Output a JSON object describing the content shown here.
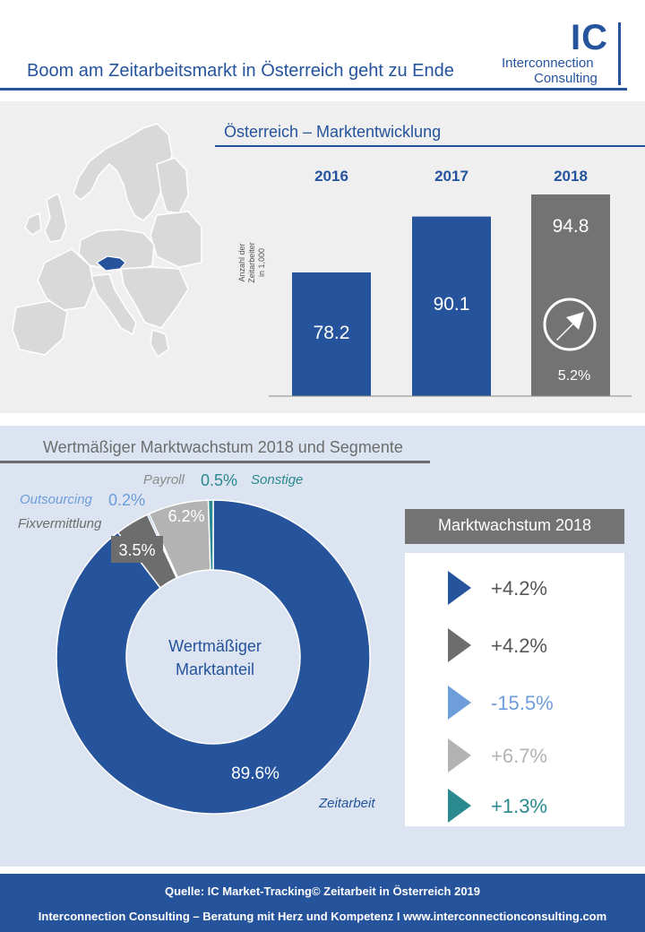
{
  "header": {
    "title": "Boom am Zeitarbeitsmarkt in Österreich geht zu Ende",
    "logo_mark": "IC",
    "logo_line1": "Interconnection",
    "logo_line2": "Consulting"
  },
  "market": {
    "title": "Österreich – Marktentwicklung",
    "ylabel_lines": [
      "Anzahl der",
      "Zeitarbeiter",
      "in 1,000"
    ],
    "growth_label": "5.2%",
    "growth_icon": "arrow-circle-up-right-icon"
  },
  "segments": {
    "title": "Wertmäßiger Marktwachstum 2018 und Segmente",
    "center_label_line1": "Wertmäßiger",
    "center_label_line2": "Marktanteil"
  },
  "growth_box": {
    "title": "Marktwachstum 2018",
    "items": [
      {
        "value": "+4.2%",
        "color": "#25539c"
      },
      {
        "value": "+4.2%",
        "color": "#6d6d6d"
      },
      {
        "value": "-15.5%",
        "color": "#6e9ddc"
      },
      {
        "value": "+6.7%",
        "color": "#b3b3b3"
      },
      {
        "value": "+1.3%",
        "color": "#2a8a8f"
      }
    ]
  },
  "footer": {
    "line1": "Quelle: IC Market-Tracking© Zeitarbeit in Österreich 2019",
    "line2": "Interconnection Consulting – Beratung mit Herz und Kompetenz  I  www.interconnectionconsulting.com"
  },
  "colors": {
    "blue": "#25539c",
    "dark_gray": "#6d6d6d",
    "light_blue": "#6e9ddc",
    "light_gray": "#b3b3b3",
    "teal": "#2a8a8f",
    "bar_2018": "#737373"
  },
  "chart_data": [
    {
      "type": "bar",
      "title": "Österreich – Marktentwicklung",
      "ylabel": "Anzahl der Zeitarbeiter in 1,000",
      "categories": [
        "2016",
        "2017",
        "2018"
      ],
      "values": [
        78.2,
        90.1,
        94.8
      ],
      "labels": [
        "78.2",
        "90.1",
        "94.8"
      ],
      "colors": [
        "#25539c",
        "#25539c",
        "#737373"
      ],
      "ylim": [
        0,
        100
      ]
    },
    {
      "type": "pie",
      "title": "Wertmäßiger Marktwachstum 2018 und Segmente",
      "slices": [
        {
          "name": "Zeitarbeit",
          "value": 89.6,
          "label": "89.6%",
          "color": "#25539c"
        },
        {
          "name": "Fixvermittlung",
          "value": 3.5,
          "label": "3.5%",
          "color": "#6d6d6d"
        },
        {
          "name": "Outsourcing",
          "value": 0.2,
          "label": "0.2%",
          "color": "#6e9ddc"
        },
        {
          "name": "Payroll",
          "value": 6.2,
          "label": "6.2%",
          "color": "#b3b3b3"
        },
        {
          "name": "Sonstige",
          "value": 0.5,
          "label": "0.5%",
          "color": "#2a8a8f"
        }
      ]
    }
  ]
}
